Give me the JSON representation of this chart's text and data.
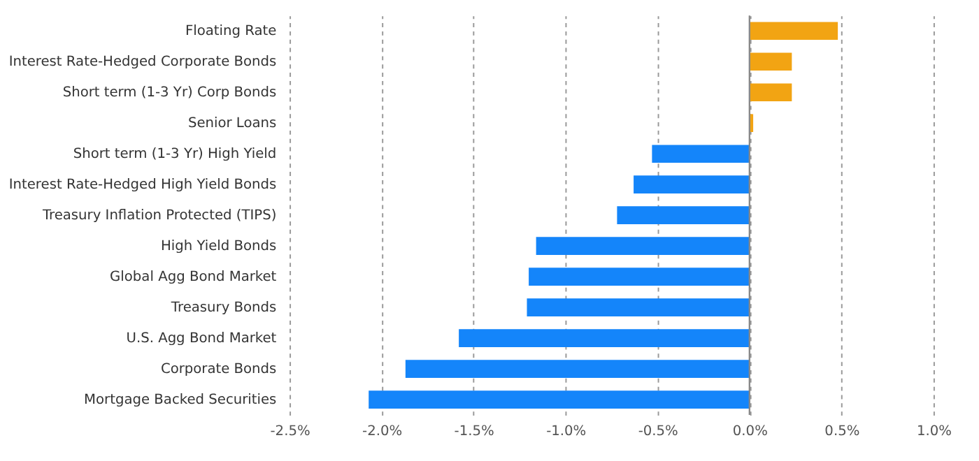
{
  "chart_data": {
    "type": "bar",
    "orientation": "horizontal",
    "categories": [
      "Floating Rate",
      "Interest Rate-Hedged Corporate Bonds",
      "Short term (1-3 Yr) Corp Bonds",
      "Senior Loans",
      "Short term (1-3 Yr) High Yield",
      "Interest Rate-Hedged High Yield Bonds",
      "Treasury Inflation Protected (TIPS)",
      "High Yield Bonds",
      "Global Agg Bond Market",
      "Treasury Bonds",
      "U.S. Agg Bond Market",
      "Corporate Bonds",
      "Mortgage Backed Securities"
    ],
    "values": [
      0.48,
      0.23,
      0.23,
      0.02,
      -0.53,
      -0.63,
      -0.72,
      -1.16,
      -1.2,
      -1.21,
      -1.58,
      -1.87,
      -2.07
    ],
    "colors": [
      "#f2a413",
      "#f2a413",
      "#f2a413",
      "#f2a413",
      "#1485fa",
      "#1485fa",
      "#1485fa",
      "#1485fa",
      "#1485fa",
      "#1485fa",
      "#1485fa",
      "#1485fa",
      "#1485fa"
    ],
    "xlim": [
      -2.5,
      1.0
    ],
    "xticks": [
      {
        "value": -2.5,
        "label": "-2.5%"
      },
      {
        "value": -2.0,
        "label": "-2.0%"
      },
      {
        "value": -1.5,
        "label": "-1.5%"
      },
      {
        "value": -1.0,
        "label": "-1.0%"
      },
      {
        "value": -0.5,
        "label": "-0.5%"
      },
      {
        "value": 0.0,
        "label": "0.0%"
      },
      {
        "value": 0.5,
        "label": "0.5%"
      },
      {
        "value": 1.0,
        "label": "1.0%"
      }
    ],
    "grid": "x",
    "ref_lines": [
      {
        "axis": "x",
        "value": 0
      }
    ]
  }
}
